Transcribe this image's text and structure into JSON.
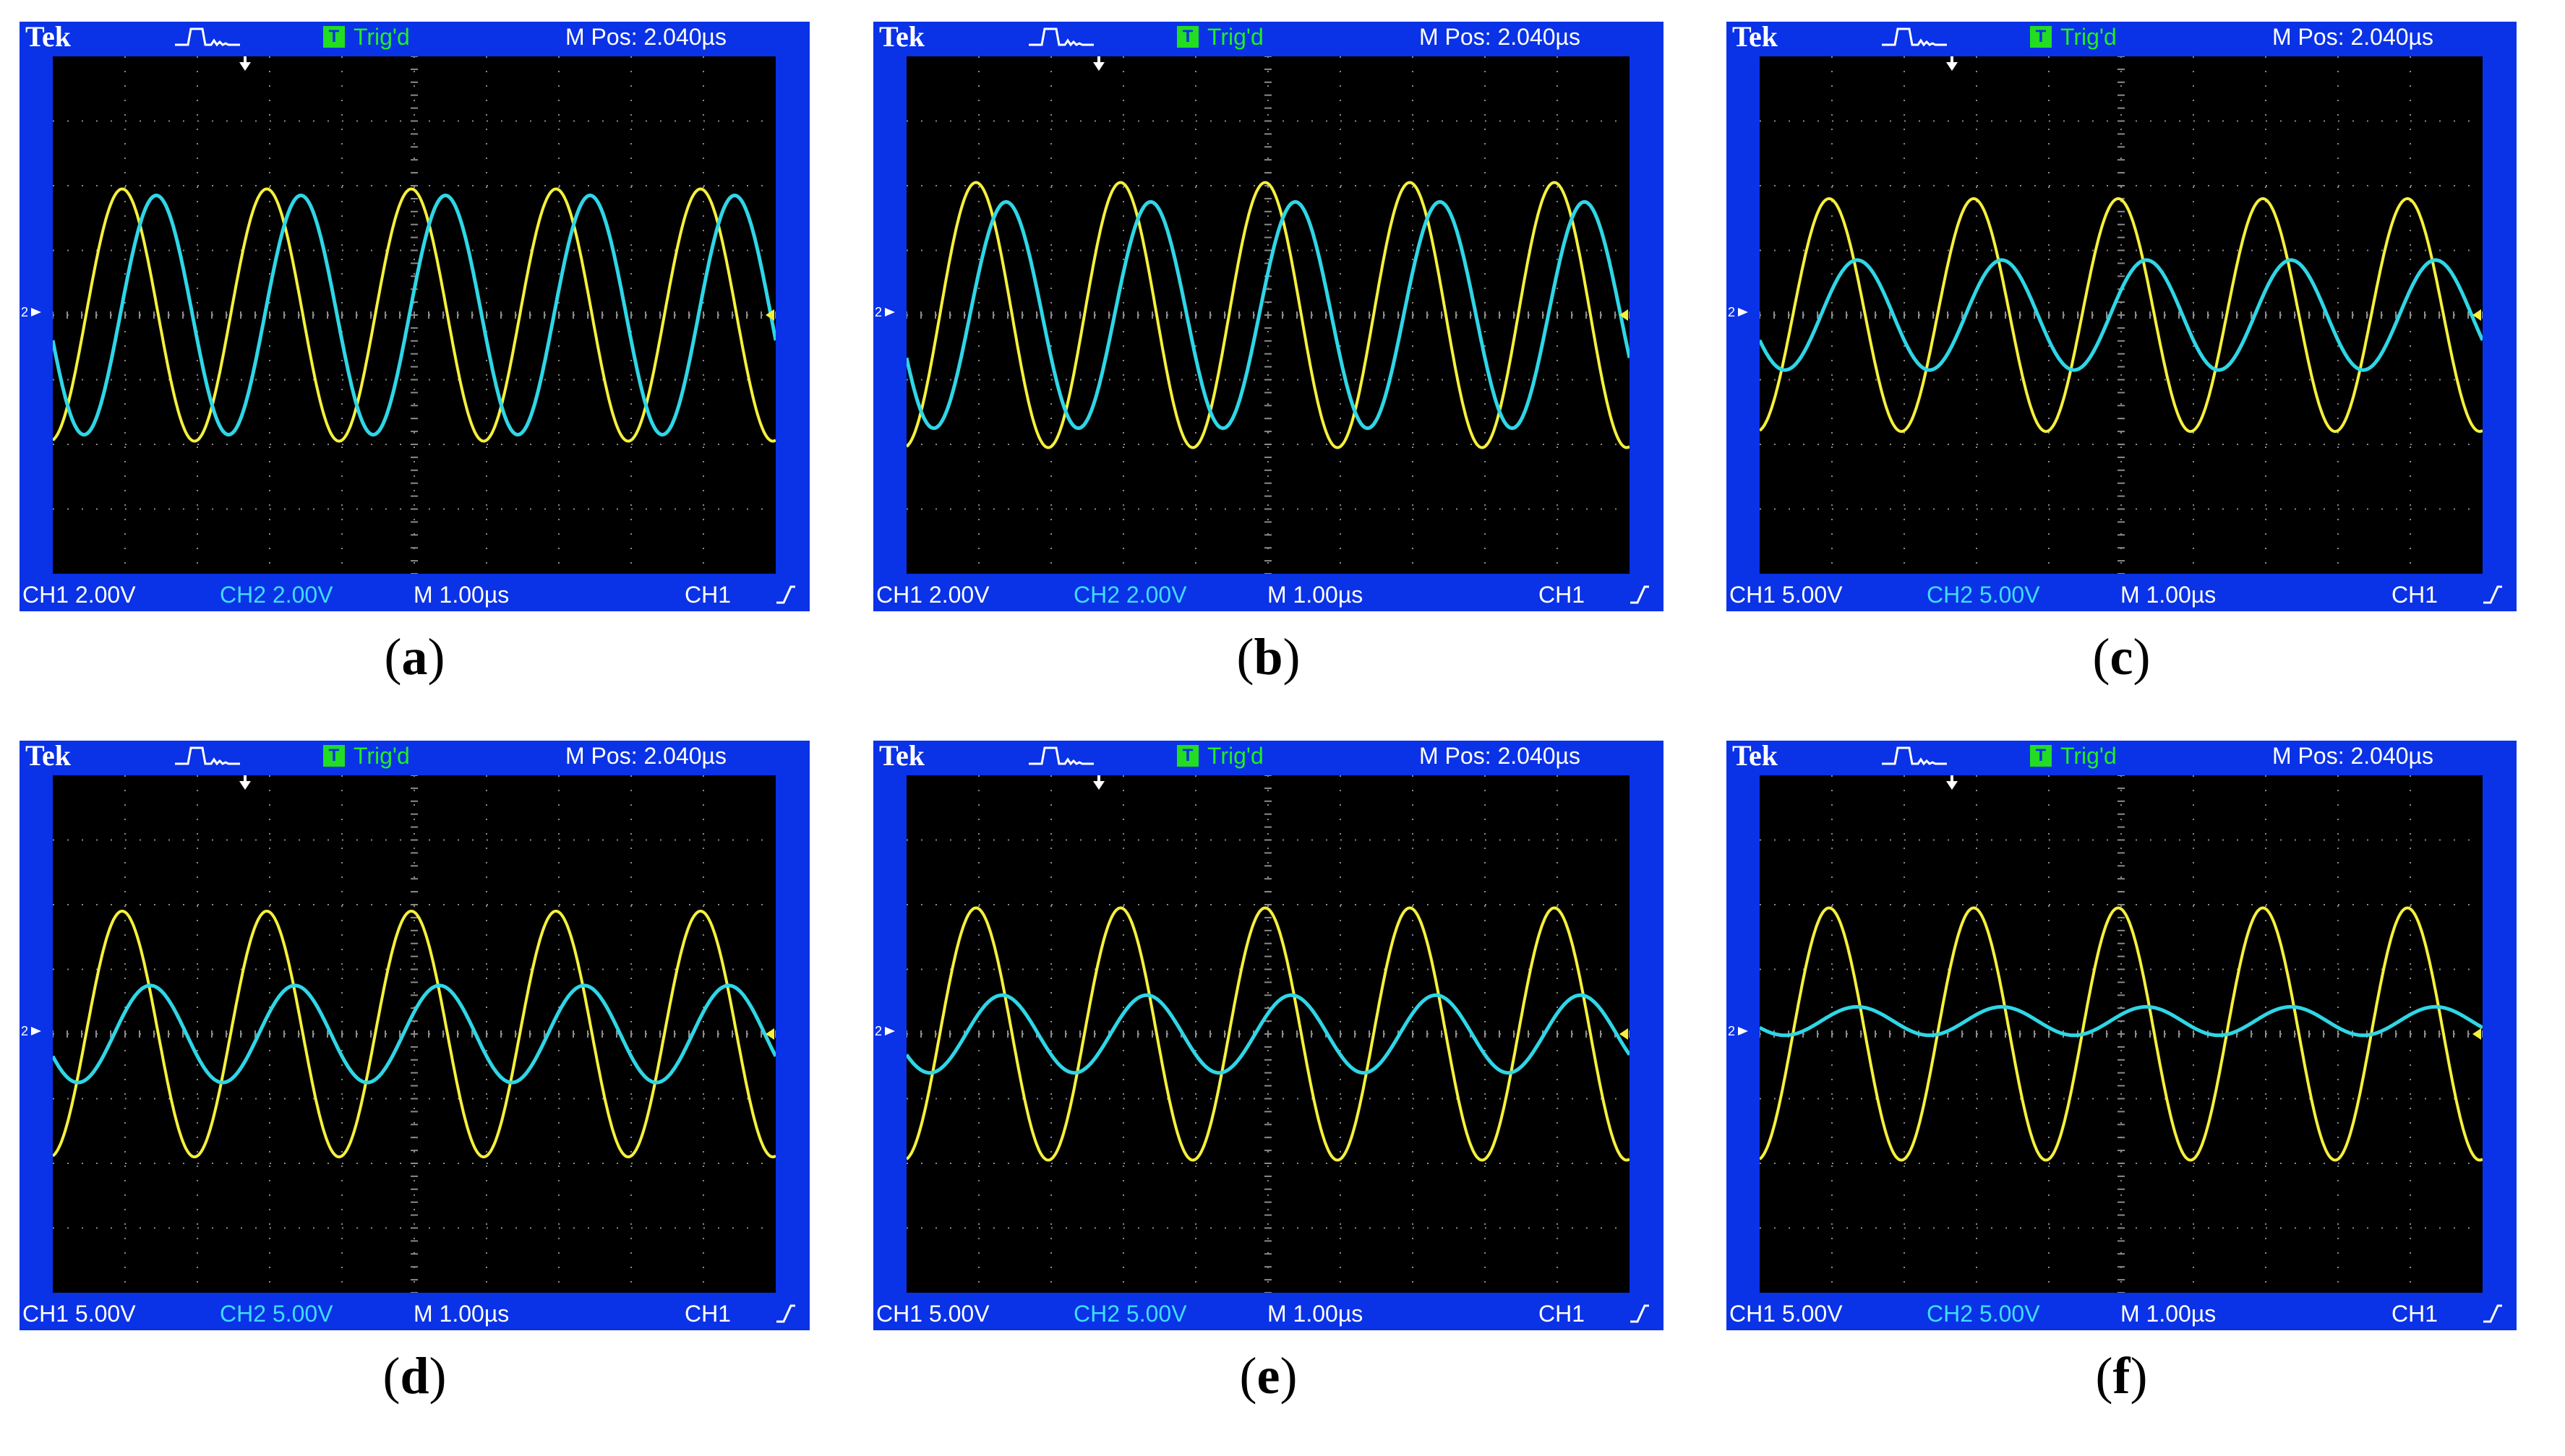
{
  "colors": {
    "frame": "#0a32e6",
    "screen": "#000000",
    "ch1": "#f5f03c",
    "ch2": "#2fd6e6",
    "grid": "#8a8a8a",
    "trig": "#22ee22"
  },
  "panels": [
    {
      "id": "a",
      "caption": "a",
      "header": {
        "brand": "Tek",
        "trigger_status": "Trig'd",
        "position": "M Pos: 2.040µs"
      },
      "footer": {
        "ch1_scale": "CH1  2.00V",
        "ch2_scale": "CH2  2.00V",
        "timebase": "M 1.00µs",
        "trigger_source": "CH1"
      },
      "chart_data": {
        "type": "line",
        "x_unit": "µs",
        "xlim": [
          -2.96,
          7.04
        ],
        "series": [
          {
            "channel": "CH1",
            "volts_per_div": 2.0,
            "amplitude_div": 1.95,
            "offset_div": 0.0,
            "period_us": 2.0,
            "phase_deg": 90
          },
          {
            "channel": "CH2",
            "volts_per_div": 2.0,
            "amplitude_div": 1.85,
            "offset_div": 0.0,
            "period_us": 2.0,
            "phase_deg": 5
          }
        ]
      }
    },
    {
      "id": "b",
      "caption": "b",
      "header": {
        "brand": "Tek",
        "trigger_status": "Trig'd",
        "position": "M Pos: 2.040µs"
      },
      "footer": {
        "ch1_scale": "CH1  2.00V",
        "ch2_scale": "CH2  2.00V",
        "timebase": "M 1.00µs",
        "trigger_source": "CH1"
      },
      "chart_data": {
        "type": "line",
        "x_unit": "µs",
        "xlim": [
          -2.96,
          7.04
        ],
        "series": [
          {
            "channel": "CH1",
            "volts_per_div": 2.0,
            "amplitude_div": 2.05,
            "offset_div": 0.0,
            "period_us": 2.0,
            "phase_deg": 90
          },
          {
            "channel": "CH2",
            "volts_per_div": 2.0,
            "amplitude_div": 1.75,
            "offset_div": 0.0,
            "period_us": 2.0,
            "phase_deg": 15
          }
        ]
      }
    },
    {
      "id": "c",
      "caption": "c",
      "header": {
        "brand": "Tek",
        "trigger_status": "Trig'd",
        "position": "M Pos: 2.040µs"
      },
      "footer": {
        "ch1_scale": "CH1  5.00V",
        "ch2_scale": "CH2  5.00V",
        "timebase": "M 1.00µs",
        "trigger_source": "CH1"
      },
      "chart_data": {
        "type": "line",
        "x_unit": "µs",
        "xlim": [
          -2.96,
          7.04
        ],
        "series": [
          {
            "channel": "CH1",
            "volts_per_div": 5.0,
            "amplitude_div": 1.8,
            "offset_div": 0.0,
            "period_us": 2.0,
            "phase_deg": 90
          },
          {
            "channel": "CH2",
            "volts_per_div": 5.0,
            "amplitude_div": 0.85,
            "offset_div": 0.0,
            "period_us": 2.0,
            "phase_deg": 20
          }
        ]
      }
    },
    {
      "id": "d",
      "caption": "d",
      "header": {
        "brand": "Tek",
        "trigger_status": "Trig'd",
        "position": "M Pos: 2.040µs"
      },
      "footer": {
        "ch1_scale": "CH1  5.00V",
        "ch2_scale": "CH2  5.00V",
        "timebase": "M 1.00µs",
        "trigger_source": "CH1"
      },
      "chart_data": {
        "type": "line",
        "x_unit": "µs",
        "xlim": [
          -2.96,
          7.04
        ],
        "series": [
          {
            "channel": "CH1",
            "volts_per_div": 5.0,
            "amplitude_div": 1.9,
            "offset_div": 0.0,
            "period_us": 2.0,
            "phase_deg": 90
          },
          {
            "channel": "CH2",
            "volts_per_div": 5.0,
            "amplitude_div": 0.75,
            "offset_div": 0.0,
            "period_us": 2.0,
            "phase_deg": 20
          }
        ]
      }
    },
    {
      "id": "e",
      "caption": "e",
      "header": {
        "brand": "Tek",
        "trigger_status": "Trig'd",
        "position": "M Pos: 2.040µs"
      },
      "footer": {
        "ch1_scale": "CH1  5.00V",
        "ch2_scale": "CH2  5.00V",
        "timebase": "M 1.00µs",
        "trigger_source": "CH1"
      },
      "chart_data": {
        "type": "line",
        "x_unit": "µs",
        "xlim": [
          -2.96,
          7.04
        ],
        "series": [
          {
            "channel": "CH1",
            "volts_per_div": 5.0,
            "amplitude_div": 1.95,
            "offset_div": 0.0,
            "period_us": 2.0,
            "phase_deg": 90
          },
          {
            "channel": "CH2",
            "volts_per_div": 5.0,
            "amplitude_div": 0.6,
            "offset_div": 0.0,
            "period_us": 2.0,
            "phase_deg": 25
          }
        ]
      }
    },
    {
      "id": "f",
      "caption": "f",
      "header": {
        "brand": "Tek",
        "trigger_status": "Trig'd",
        "position": "M Pos: 2.040µs"
      },
      "footer": {
        "ch1_scale": "CH1  5.00V",
        "ch2_scale": "CH2  5.00V",
        "timebase": "M 1.00µs",
        "trigger_source": "CH1"
      },
      "chart_data": {
        "type": "line",
        "x_unit": "µs",
        "xlim": [
          -2.96,
          7.04
        ],
        "series": [
          {
            "channel": "CH1",
            "volts_per_div": 5.0,
            "amplitude_div": 1.95,
            "offset_div": 0.0,
            "period_us": 2.0,
            "phase_deg": 90
          },
          {
            "channel": "CH2",
            "volts_per_div": 5.0,
            "amplitude_div": 0.22,
            "offset_div": 0.2,
            "period_us": 2.0,
            "phase_deg": 20
          }
        ]
      }
    }
  ]
}
